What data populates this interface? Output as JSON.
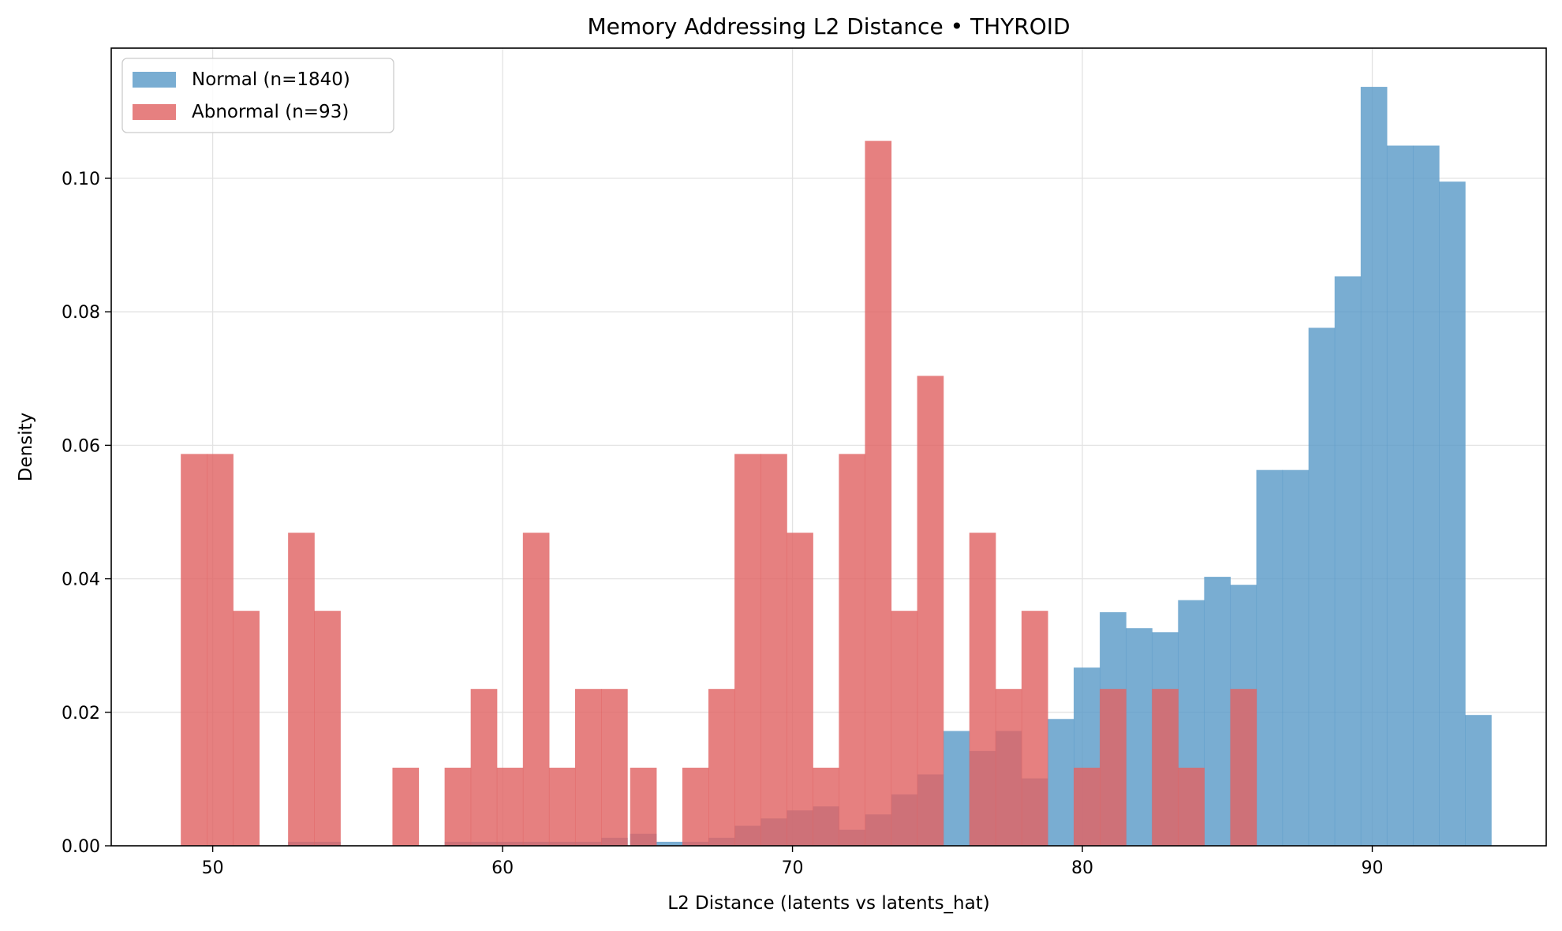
{
  "chart_data": {
    "type": "histogram",
    "title": "Memory Addressing L2 Distance • THYROID",
    "xlabel": "L2 Distance (latents vs latents_hat)",
    "ylabel": "Density",
    "xlim": [
      46.5,
      96.0
    ],
    "ylim": [
      0,
      0.1195
    ],
    "x_ticks": [
      50,
      60,
      70,
      80,
      90
    ],
    "y_ticks": [
      0.0,
      0.02,
      0.04,
      0.06,
      0.08,
      0.1
    ],
    "grid": true,
    "legend_position": "upper-left",
    "series": [
      {
        "name": "Normal (n=1840)",
        "color": "#5b9bc8",
        "opacity": 0.82,
        "bin_width": 0.905,
        "bin_starts": [
          52.6,
          53.5,
          58.0,
          58.9,
          59.8,
          60.7,
          61.6,
          62.5,
          63.4,
          64.4,
          65.3,
          66.2,
          67.1,
          68.0,
          68.9,
          69.8,
          70.7,
          71.6,
          72.5,
          73.4,
          74.3,
          75.2,
          76.1,
          77.0,
          77.9,
          78.8,
          79.7,
          80.6,
          81.5,
          82.4,
          83.3,
          84.2,
          85.1,
          86.0,
          86.9,
          87.8,
          88.7,
          89.6,
          90.5,
          91.4,
          92.3,
          93.2
        ],
        "values": [
          0.0006,
          0.0006,
          0.0006,
          0.0006,
          0.0006,
          0.0006,
          0.0006,
          0.0006,
          0.0012,
          0.0018,
          0.0006,
          0.0006,
          0.0012,
          0.003,
          0.0041,
          0.0053,
          0.0059,
          0.0024,
          0.0047,
          0.0077,
          0.0107,
          0.0172,
          0.0142,
          0.0172,
          0.0101,
          0.019,
          0.0267,
          0.035,
          0.0326,
          0.032,
          0.0368,
          0.0403,
          0.0391,
          0.0563,
          0.0563,
          0.0776,
          0.0853,
          0.1137,
          0.1049,
          0.1049,
          0.0995,
          0.0196
        ]
      },
      {
        "name": "Abnormal (n=93)",
        "color": "#e06464",
        "opacity": 0.82,
        "bin_width": 0.905,
        "bin_starts": [
          48.9,
          49.8,
          50.7,
          52.6,
          53.5,
          56.2,
          58.0,
          58.9,
          59.8,
          60.7,
          61.6,
          62.5,
          63.4,
          64.4,
          66.2,
          67.1,
          68.0,
          68.9,
          69.8,
          70.7,
          71.6,
          72.5,
          73.4,
          74.3,
          76.1,
          77.0,
          77.9,
          79.7,
          80.6,
          82.4,
          83.3,
          85.1
        ],
        "values": [
          0.0587,
          0.0587,
          0.0352,
          0.0469,
          0.0352,
          0.0117,
          0.0117,
          0.0235,
          0.0117,
          0.0469,
          0.0117,
          0.0235,
          0.0235,
          0.0117,
          0.0117,
          0.0235,
          0.0587,
          0.0587,
          0.0469,
          0.0117,
          0.0587,
          0.1056,
          0.0352,
          0.0704,
          0.0469,
          0.0235,
          0.0352,
          0.0117,
          0.0235,
          0.0235,
          0.0117,
          0.0235
        ]
      }
    ]
  }
}
